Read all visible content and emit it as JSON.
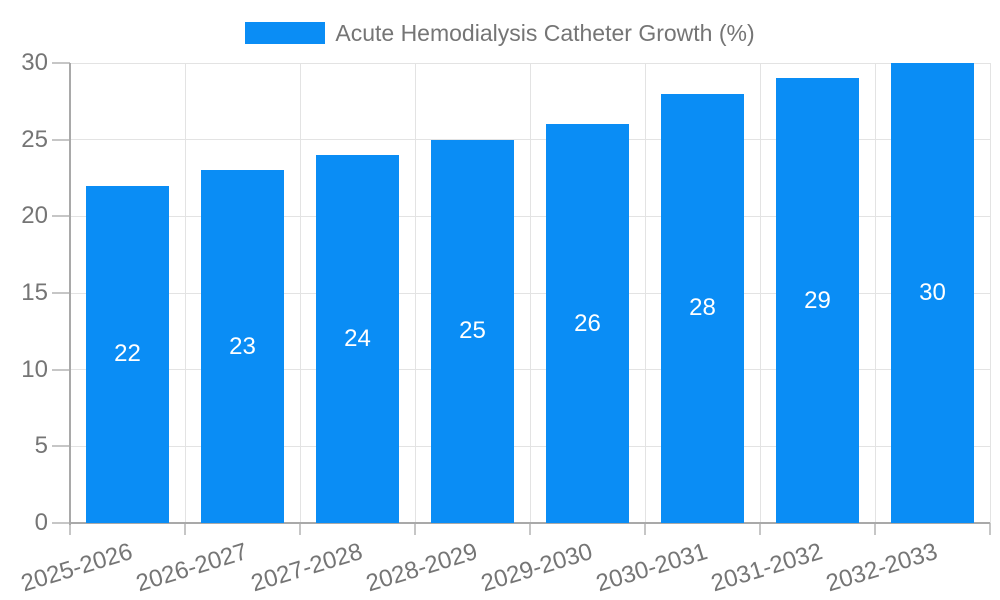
{
  "chart_data": {
    "type": "bar",
    "title": "",
    "legend_label": "Acute Hemodialysis Catheter Growth (%)",
    "legend_position": "top-center",
    "categories": [
      "2025-2026",
      "2026-2027",
      "2027-2028",
      "2028-2029",
      "2029-2030",
      "2030-2031",
      "2031-2032",
      "2032-2033"
    ],
    "values": [
      22,
      23,
      24,
      25,
      26,
      28,
      29,
      30
    ],
    "xlabel": "",
    "ylabel": "",
    "ylim": [
      0,
      30
    ],
    "yticks": [
      0,
      5,
      10,
      15,
      20,
      25,
      30
    ],
    "grid": true,
    "x_label_rotation_deg": -17,
    "colors": {
      "bar": "#0A8DF5",
      "bar_label_text": "#FFFFFF",
      "axis_line": "#A9A9A9",
      "gridline": "#E3E3E3",
      "tick_mark": "#C6C6C6",
      "tick_label_text": "#757575",
      "legend_text": "#757575",
      "background": "#FFFFFF"
    }
  }
}
